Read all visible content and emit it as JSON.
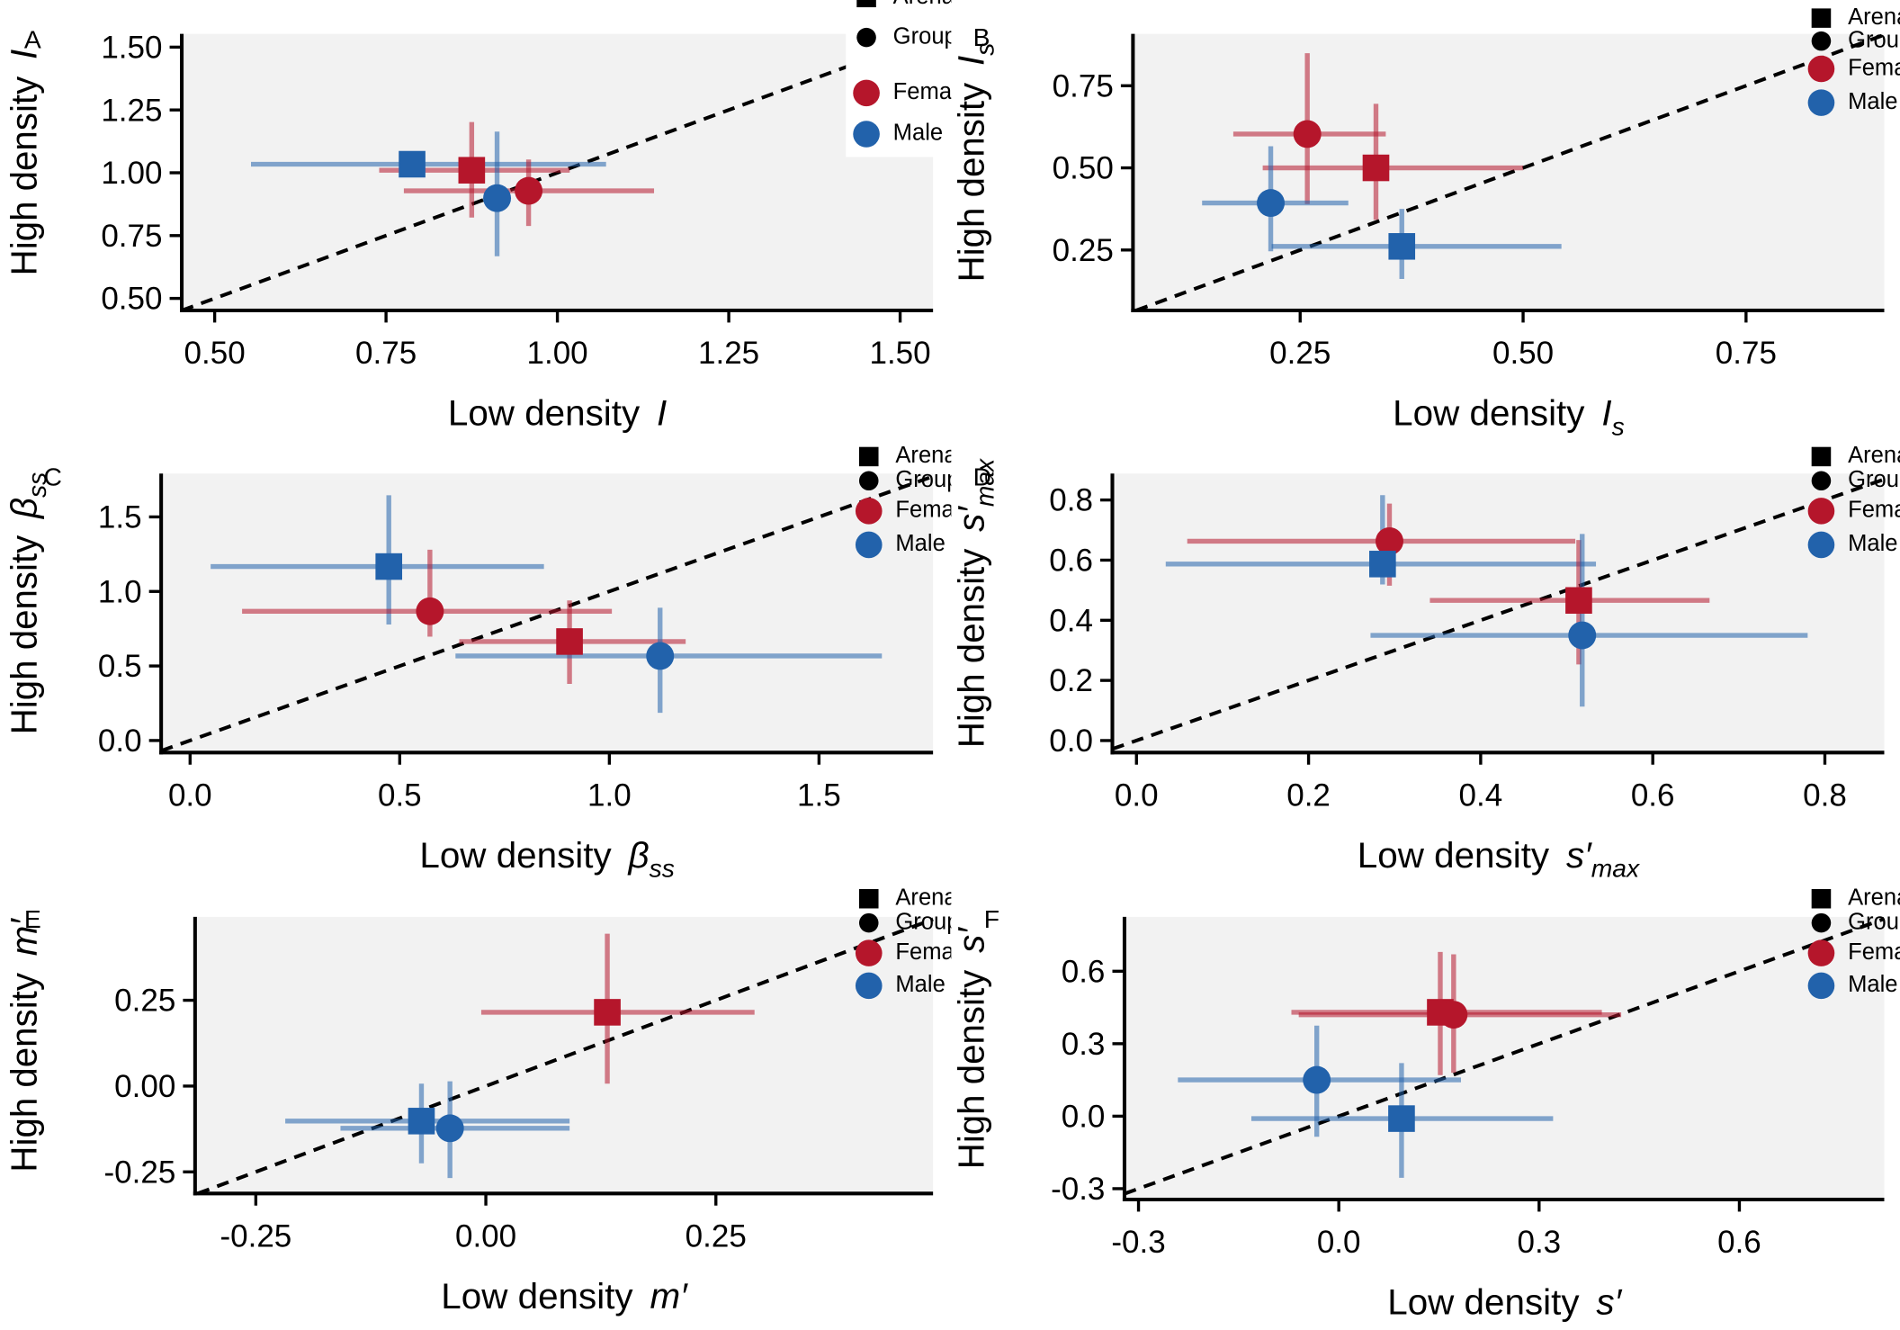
{
  "chart_data": [
    {
      "type": "scatter",
      "panel": "A",
      "x_label": "Low density",
      "x_symbol": "I",
      "y_label": "High density",
      "y_symbol": "I",
      "xlim": [
        0.452,
        1.548
      ],
      "ylim": [
        0.452,
        1.553
      ],
      "diagonal": true,
      "xticks": [
        {
          "value": 0.5,
          "label": "0.50"
        },
        {
          "value": 0.75,
          "label": "0.75"
        },
        {
          "value": 1,
          "label": "1.00"
        },
        {
          "value": 1.25,
          "label": "1.25"
        },
        {
          "value": 1.5,
          "label": "1.50"
        }
      ],
      "yticks": [
        {
          "value": 0.5,
          "label": "0.50"
        },
        {
          "value": 0.75,
          "label": "0.75"
        },
        {
          "value": 1,
          "label": "1.00"
        },
        {
          "value": 1.25,
          "label": "1.25"
        },
        {
          "value": 1.5,
          "label": "1.50"
        }
      ],
      "legend": [
        {
          "label": "Arena",
          "marker": "square",
          "color": "#000000"
        },
        {
          "label": "Group",
          "marker": "circle",
          "color": "#000000"
        },
        {
          "label": "Female",
          "marker": "circle",
          "color": "#b5162b"
        },
        {
          "label": "Male",
          "marker": "circle",
          "color": "#2262ab"
        }
      ],
      "series": [
        {
          "marker": "square",
          "color": "#2262ab",
          "x": [
            0.788
          ],
          "values": [
            1.034
          ],
          "x_low": [
            0.553
          ],
          "x_high": [
            1.071
          ],
          "y_low": [
            null
          ],
          "y_high": [
            null
          ]
        },
        {
          "marker": "square",
          "color": "#b5162b",
          "x": [
            0.875
          ],
          "values": [
            1.01
          ],
          "x_low": [
            0.74
          ],
          "x_high": [
            1.018
          ],
          "y_low": [
            0.822
          ],
          "y_high": [
            1.202
          ]
        },
        {
          "marker": "circle",
          "color": "#b5162b",
          "x": [
            0.958
          ],
          "values": [
            0.928
          ],
          "x_low": [
            0.776
          ],
          "x_high": [
            1.141
          ],
          "y_low": [
            0.788
          ],
          "y_high": [
            1.053
          ]
        },
        {
          "marker": "circle",
          "color": "#2262ab",
          "x": [
            0.912
          ],
          "values": [
            0.899
          ],
          "x_low": [
            null
          ],
          "x_high": [
            null
          ],
          "y_low": [
            0.668
          ],
          "y_high": [
            1.164
          ]
        }
      ]
    },
    {
      "type": "scatter",
      "panel": "B",
      "x_label": "Low density",
      "x_symbol": "I",
      "x_symbol_sub": "s",
      "y_label": "High density",
      "y_symbol": "I",
      "y_symbol_sub": "s",
      "xlim": [
        0.0625,
        0.905
      ],
      "ylim": [
        0.066,
        0.908
      ],
      "diagonal": true,
      "xticks": [
        {
          "value": 0.25,
          "label": "0.25"
        },
        {
          "value": 0.5,
          "label": "0.50"
        },
        {
          "value": 0.75,
          "label": "0.75"
        }
      ],
      "yticks": [
        {
          "value": 0.25,
          "label": "0.25"
        },
        {
          "value": 0.5,
          "label": "0.50"
        },
        {
          "value": 0.75,
          "label": "0.75"
        }
      ],
      "legend": [
        {
          "label": "Arena",
          "marker": "square",
          "color": "#000000"
        },
        {
          "label": "Group",
          "marker": "circle",
          "color": "#000000"
        },
        {
          "label": "Female",
          "marker": "circle",
          "color": "#b5162b"
        },
        {
          "label": "Male",
          "marker": "circle",
          "color": "#2262ab"
        }
      ],
      "series": [
        {
          "marker": "circle",
          "color": "#b5162b",
          "x": [
            0.258
          ],
          "values": [
            0.603
          ],
          "x_low": [
            0.175
          ],
          "x_high": [
            0.346
          ],
          "y_low": [
            0.39
          ],
          "y_high": [
            0.849
          ]
        },
        {
          "marker": "square",
          "color": "#b5162b",
          "x": [
            0.335
          ],
          "values": [
            0.5
          ],
          "x_low": [
            0.208
          ],
          "x_high": [
            0.5
          ],
          "y_low": [
            0.342
          ],
          "y_high": [
            0.695
          ]
        },
        {
          "marker": "circle",
          "color": "#2262ab",
          "x": [
            0.217
          ],
          "values": [
            0.393
          ],
          "x_low": [
            0.14
          ],
          "x_high": [
            0.304
          ],
          "y_low": [
            0.246
          ],
          "y_high": [
            0.566
          ]
        },
        {
          "marker": "square",
          "color": "#2262ab",
          "x": [
            0.364
          ],
          "values": [
            0.261
          ],
          "x_low": [
            0.218
          ],
          "x_high": [
            0.543
          ],
          "y_low": [
            0.162
          ],
          "y_high": [
            0.375
          ]
        }
      ]
    },
    {
      "type": "scatter",
      "panel": "C",
      "x_label": "Low density",
      "x_symbol": "β",
      "x_symbol_sub": "ss",
      "y_label": "High density",
      "y_symbol": "β",
      "y_symbol_sub": "ss",
      "xlim": [
        -0.069,
        1.772
      ],
      "ylim": [
        -0.081,
        1.791
      ],
      "diagonal": true,
      "xticks": [
        {
          "value": 0,
          "label": "0.0"
        },
        0.5,
        {
          "value": 1,
          "label": "1.0"
        },
        1.5
      ],
      "yticks": [
        {
          "value": 0,
          "label": "0.0"
        },
        0.5,
        {
          "value": 1,
          "label": "1.0"
        },
        1.5
      ],
      "legend": [
        {
          "label": "Arena",
          "marker": "square",
          "color": "#000000"
        },
        {
          "label": "Group",
          "marker": "circle",
          "color": "#000000"
        },
        {
          "label": "Female",
          "marker": "circle",
          "color": "#b5162b"
        },
        {
          "label": "Male",
          "marker": "circle",
          "color": "#2262ab"
        }
      ],
      "series": [
        {
          "marker": "square",
          "color": "#2262ab",
          "x": [
            0.474
          ],
          "values": [
            1.167
          ],
          "x_low": [
            0.049
          ],
          "x_high": [
            0.844
          ],
          "y_low": [
            0.778
          ],
          "y_high": [
            1.645
          ]
        },
        {
          "marker": "circle",
          "color": "#b5162b",
          "x": [
            0.572
          ],
          "values": [
            0.867
          ],
          "x_low": [
            0.124
          ],
          "x_high": [
            1.006
          ],
          "y_low": [
            0.697
          ],
          "y_high": [
            1.28
          ]
        },
        {
          "marker": "square",
          "color": "#b5162b",
          "x": [
            0.905
          ],
          "values": [
            0.664
          ],
          "x_low": [
            0.642
          ],
          "x_high": [
            1.182
          ],
          "y_low": [
            0.38
          ],
          "y_high": [
            0.94
          ]
        },
        {
          "marker": "circle",
          "color": "#2262ab",
          "x": [
            1.121
          ],
          "values": [
            0.567
          ],
          "x_low": [
            0.633
          ],
          "x_high": [
            1.65
          ],
          "y_low": [
            0.186
          ],
          "y_high": [
            0.891
          ]
        }
      ]
    },
    {
      "type": "scatter",
      "panel": "D",
      "x_label": "Low density",
      "x_symbol": "s′",
      "x_symbol_sub": "max",
      "y_label": "High density",
      "y_symbol": "s′",
      "y_symbol_sub": "max",
      "xlim": [
        -0.028,
        0.869
      ],
      "ylim": [
        -0.04,
        0.888
      ],
      "diagonal": true,
      "xticks": [
        {
          "value": 0,
          "label": "0.0"
        },
        0.2,
        0.4,
        0.6,
        0.8
      ],
      "yticks": [
        {
          "value": 0,
          "label": "0.0"
        },
        0.2,
        0.4,
        0.6,
        0.8
      ],
      "legend": [
        {
          "label": "Arena",
          "marker": "square",
          "color": "#000000"
        },
        {
          "label": "Group",
          "marker": "circle",
          "color": "#000000"
        },
        {
          "label": "Female",
          "marker": "circle",
          "color": "#b5162b"
        },
        {
          "label": "Male",
          "marker": "circle",
          "color": "#2262ab"
        }
      ],
      "series": [
        {
          "marker": "circle",
          "color": "#b5162b",
          "x": [
            0.294
          ],
          "values": [
            0.663
          ],
          "x_low": [
            0.059
          ],
          "x_high": [
            0.51
          ],
          "y_low": [
            0.515
          ],
          "y_high": [
            0.788
          ]
        },
        {
          "marker": "square",
          "color": "#2262ab",
          "x": [
            0.286
          ],
          "values": [
            0.587
          ],
          "x_low": [
            0.034
          ],
          "x_high": [
            0.534
          ],
          "y_low": [
            0.519
          ],
          "y_high": [
            0.816
          ]
        },
        {
          "marker": "square",
          "color": "#b5162b",
          "x": [
            0.514
          ],
          "values": [
            0.466
          ],
          "x_low": [
            0.341
          ],
          "x_high": [
            0.666
          ],
          "y_low": [
            0.253
          ],
          "y_high": [
            0.667
          ]
        },
        {
          "marker": "circle",
          "color": "#2262ab",
          "x": [
            0.518
          ],
          "values": [
            0.35
          ],
          "x_low": [
            0.272
          ],
          "x_high": [
            0.78
          ],
          "y_low": [
            0.113
          ],
          "y_high": [
            0.687
          ]
        }
      ]
    },
    {
      "type": "scatter",
      "panel": "E",
      "x_label": "Low density",
      "x_symbol": "m′",
      "y_label": "High density",
      "y_symbol": "m′",
      "xlim": [
        -0.316,
        0.486
      ],
      "ylim": [
        -0.313,
        0.493
      ],
      "diagonal": true,
      "xticks": [
        -0.25,
        {
          "value": 0,
          "label": "0.00"
        },
        0.25
      ],
      "yticks": [
        -0.25,
        {
          "value": 0,
          "label": "0.00"
        },
        0.25
      ],
      "legend": [
        {
          "label": "Arena",
          "marker": "square",
          "color": "#000000"
        },
        {
          "label": "Group",
          "marker": "circle",
          "color": "#000000"
        },
        {
          "label": "Female",
          "marker": "circle",
          "color": "#b5162b"
        },
        {
          "label": "Male",
          "marker": "circle",
          "color": "#2262ab"
        }
      ],
      "series": [
        {
          "marker": "square",
          "color": "#b5162b",
          "x": [
            0.132
          ],
          "values": [
            0.215
          ],
          "x_low": [
            -0.005
          ],
          "x_high": [
            0.292
          ],
          "y_low": [
            0.007
          ],
          "y_high": [
            0.444
          ]
        },
        {
          "marker": "square",
          "color": "#2262ab",
          "x": [
            -0.07
          ],
          "values": [
            -0.102
          ],
          "x_low": [
            -0.218
          ],
          "x_high": [
            0.091
          ],
          "y_low": [
            -0.225
          ],
          "y_high": [
            0.007
          ]
        },
        {
          "marker": "circle",
          "color": "#2262ab",
          "x": [
            -0.039
          ],
          "values": [
            -0.123
          ],
          "x_low": [
            -0.158
          ],
          "x_high": [
            0.091
          ],
          "y_low": [
            -0.268
          ],
          "y_high": [
            0.014
          ]
        }
      ]
    },
    {
      "type": "scatter",
      "panel": "F",
      "x_label": "Low density",
      "x_symbol": "s′",
      "y_label": "High density",
      "y_symbol": "s′",
      "xlim": [
        -0.321,
        0.817
      ],
      "ylim": [
        -0.345,
        0.825
      ],
      "diagonal": true,
      "xticks": [
        -0.3,
        {
          "value": 0,
          "label": "0.0"
        },
        0.3,
        0.6
      ],
      "yticks": [
        -0.3,
        {
          "value": 0,
          "label": "0.0"
        },
        0.3,
        0.6
      ],
      "legend": [
        {
          "label": "Arena",
          "marker": "square",
          "color": "#000000"
        },
        {
          "label": "Group",
          "marker": "circle",
          "color": "#000000"
        },
        {
          "label": "Female",
          "marker": "circle",
          "color": "#b5162b"
        },
        {
          "label": "Male",
          "marker": "circle",
          "color": "#2262ab"
        }
      ],
      "series": [
        {
          "marker": "square",
          "color": "#b5162b",
          "x": [
            0.152
          ],
          "values": [
            0.43
          ],
          "x_low": [
            -0.071
          ],
          "x_high": [
            0.394
          ],
          "y_low": [
            0.17
          ],
          "y_high": [
            0.68
          ]
        },
        {
          "marker": "circle",
          "color": "#b5162b",
          "x": [
            0.172
          ],
          "values": [
            0.42
          ],
          "x_low": [
            -0.06
          ],
          "x_high": [
            0.423
          ],
          "y_low": [
            0.18
          ],
          "y_high": [
            0.67
          ]
        },
        {
          "marker": "circle",
          "color": "#2262ab",
          "x": [
            -0.033
          ],
          "values": [
            0.15
          ],
          "x_low": [
            -0.241
          ],
          "x_high": [
            0.183
          ],
          "y_low": [
            -0.085
          ],
          "y_high": [
            0.375
          ]
        },
        {
          "marker": "square",
          "color": "#2262ab",
          "x": [
            0.094
          ],
          "values": [
            -0.01
          ],
          "x_low": [
            -0.131
          ],
          "x_high": [
            0.321
          ],
          "y_low": [
            -0.255
          ],
          "y_high": [
            0.22
          ]
        }
      ]
    }
  ]
}
